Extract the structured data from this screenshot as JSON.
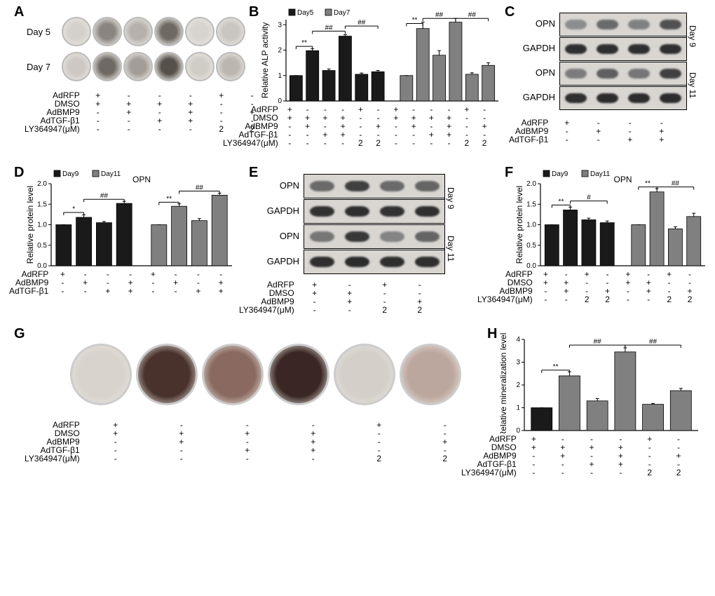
{
  "colors": {
    "bar_day_a": "#1a1a1a",
    "bar_day_b": "#808080",
    "bar_outline": "#000000",
    "errbar": "#000000",
    "plate_ring": "#c8c8c8",
    "blot_bg": "#d9d6d2",
    "blot_band_dark": "#2b2b2b",
    "blot_band_mid": "#555555",
    "blot_band_light": "#888888",
    "well_bg": "#e8e4df"
  },
  "panelA": {
    "label": "A",
    "row_labels": [
      "Day 5",
      "Day 7"
    ],
    "well_diameter": 42,
    "rows": [
      {
        "shades": [
          "#d4d0cb",
          "#8a8580",
          "#b6b1ab",
          "#6e6963",
          "#d7d3ce",
          "#c9c5c0"
        ]
      },
      {
        "shades": [
          "#cdc8c3",
          "#6e6963",
          "#a29d97",
          "#555049",
          "#d0ccc6",
          "#bbb6b0"
        ]
      }
    ],
    "treatments": {
      "labels": [
        "AdRFP",
        "DMSO",
        "AdBMP9",
        "AdTGF-β1",
        "LY364947(μM)"
      ],
      "cols": [
        [
          "+",
          "+",
          "-",
          "-",
          "-"
        ],
        [
          "-",
          "+",
          "+",
          "-",
          "-"
        ],
        [
          "-",
          "+",
          "-",
          "+",
          "-"
        ],
        [
          "-",
          "+",
          "+",
          "+",
          "-"
        ],
        [
          "+",
          "-",
          "-",
          "-",
          "2"
        ],
        [
          "-",
          "-",
          "+",
          "-",
          "2"
        ]
      ]
    }
  },
  "panelB": {
    "label": "B",
    "ylabel": "Relative ALP activity",
    "legend": [
      "Day5",
      "Day7"
    ],
    "ymax": 3.2,
    "ytick": 1,
    "groups": 6,
    "series": [
      {
        "color": "#1a1a1a",
        "values": [
          1.0,
          1.98,
          1.2,
          2.55,
          1.05,
          1.15
        ],
        "err": [
          0.0,
          0.08,
          0.06,
          0.06,
          0.05,
          0.05
        ]
      },
      {
        "color": "#808080",
        "values": [
          1.0,
          2.85,
          1.8,
          3.1,
          1.05,
          1.4
        ],
        "err": [
          0.0,
          0.25,
          0.18,
          0.15,
          0.06,
          0.1
        ]
      }
    ],
    "sig": [
      {
        "pair_series": 0,
        "g1": 0,
        "g2": 1,
        "y": 2.15,
        "text": "**"
      },
      {
        "pair_series": 0,
        "g1": 1,
        "g2": 3,
        "y": 2.75,
        "text": "##"
      },
      {
        "pair_series": 0,
        "g1": 3,
        "g2": 5,
        "y": 2.95,
        "text": "##"
      },
      {
        "pair_series": 1,
        "g1": 0,
        "g2": 1,
        "y": 3.05,
        "text": "**"
      },
      {
        "pair_series": 1,
        "g1": 1,
        "g2": 3,
        "y": 3.25,
        "text": "##"
      },
      {
        "pair_series": 1,
        "g1": 3,
        "g2": 5,
        "y": 3.25,
        "text": "##"
      }
    ],
    "treatments": {
      "labels": [
        "AdRFP",
        "DMSO",
        "AdBMP9",
        "AdTGF-β1",
        "LY364947(μM)"
      ],
      "cols": [
        [
          "+",
          "+",
          "-",
          "-",
          "-"
        ],
        [
          "-",
          "+",
          "+",
          "-",
          "-"
        ],
        [
          "-",
          "+",
          "-",
          "+",
          "-"
        ],
        [
          "-",
          "+",
          "+",
          "+",
          "-"
        ],
        [
          "+",
          "-",
          "-",
          "-",
          "2"
        ],
        [
          "-",
          "-",
          "+",
          "-",
          "2"
        ]
      ],
      "repeat_cols_for_series": true
    }
  },
  "panelC": {
    "label": "C",
    "lane_count": 4,
    "groups": [
      {
        "side": "Day 9",
        "rows": [
          {
            "name": "OPN",
            "intensity": [
              0.35,
              0.55,
              0.42,
              0.7
            ]
          },
          {
            "name": "GAPDH",
            "intensity": [
              0.9,
              0.9,
              0.9,
              0.9
            ]
          }
        ]
      },
      {
        "side": "Day 11",
        "rows": [
          {
            "name": "OPN",
            "intensity": [
              0.45,
              0.62,
              0.48,
              0.8
            ]
          },
          {
            "name": "GAPDH",
            "intensity": [
              0.9,
              0.92,
              0.92,
              0.92
            ]
          }
        ]
      }
    ],
    "treatments": {
      "labels": [
        "AdRFP",
        "AdBMP9",
        "AdTGF-β1"
      ],
      "cols": [
        [
          "+",
          "-",
          "-"
        ],
        [
          "-",
          "+",
          "-"
        ],
        [
          "-",
          "-",
          "+"
        ],
        [
          "-",
          "+",
          "+"
        ]
      ]
    }
  },
  "panelD": {
    "label": "D",
    "title": "OPN",
    "ylabel": "Relative protein level",
    "legend": [
      "Day9",
      "Day11"
    ],
    "ymax": 2.0,
    "ytick": 0.5,
    "groups": 4,
    "series": [
      {
        "color": "#1a1a1a",
        "values": [
          1.0,
          1.18,
          1.05,
          1.52
        ],
        "err": [
          0.0,
          0.06,
          0.03,
          0.05
        ]
      },
      {
        "color": "#808080",
        "values": [
          1.0,
          1.45,
          1.1,
          1.72
        ],
        "err": [
          0.0,
          0.06,
          0.05,
          0.05
        ]
      }
    ],
    "sig": [
      {
        "pair_series": 0,
        "g1": 0,
        "g2": 1,
        "y": 1.3,
        "text": "*"
      },
      {
        "pair_series": 0,
        "g1": 1,
        "g2": 3,
        "y": 1.62,
        "text": "##"
      },
      {
        "pair_series": 1,
        "g1": 0,
        "g2": 1,
        "y": 1.55,
        "text": "**"
      },
      {
        "pair_series": 1,
        "g1": 1,
        "g2": 3,
        "y": 1.82,
        "text": "##"
      }
    ],
    "treatments": {
      "labels": [
        "AdRFP",
        "AdBMP9",
        "AdTGF-β1"
      ],
      "cols": [
        [
          "+",
          "-",
          "-"
        ],
        [
          "-",
          "+",
          "-"
        ],
        [
          "-",
          "-",
          "+"
        ],
        [
          "-",
          "+",
          "+"
        ]
      ],
      "repeat_cols_for_series": true
    }
  },
  "panelE": {
    "label": "E",
    "lane_count": 4,
    "groups": [
      {
        "side": "Day 9",
        "rows": [
          {
            "name": "OPN",
            "intensity": [
              0.55,
              0.8,
              0.55,
              0.58
            ]
          },
          {
            "name": "GAPDH",
            "intensity": [
              0.88,
              0.9,
              0.88,
              0.9
            ]
          }
        ]
      },
      {
        "side": "Day 11",
        "rows": [
          {
            "name": "OPN",
            "intensity": [
              0.48,
              0.85,
              0.4,
              0.58
            ]
          },
          {
            "name": "GAPDH",
            "intensity": [
              0.9,
              0.92,
              0.9,
              0.9
            ]
          }
        ]
      }
    ],
    "treatments": {
      "labels": [
        "AdRFP",
        "DMSO",
        "AdBMP9",
        "LY364947(μM)"
      ],
      "cols": [
        [
          "+",
          "+",
          "-",
          "-"
        ],
        [
          "-",
          "+",
          "+",
          "-"
        ],
        [
          "+",
          "-",
          "-",
          "2"
        ],
        [
          "-",
          "-",
          "+",
          "2"
        ]
      ]
    }
  },
  "panelF": {
    "label": "F",
    "title": "OPN",
    "ylabel": "Relative protein level",
    "legend": [
      "Day9",
      "Day11"
    ],
    "ymax": 2.0,
    "ytick": 0.5,
    "groups": 4,
    "series": [
      {
        "color": "#1a1a1a",
        "values": [
          1.0,
          1.36,
          1.12,
          1.05
        ],
        "err": [
          0.0,
          0.07,
          0.04,
          0.04
        ]
      },
      {
        "color": "#808080",
        "values": [
          1.0,
          1.8,
          0.9,
          1.2
        ],
        "err": [
          0.0,
          0.08,
          0.05,
          0.08
        ]
      }
    ],
    "sig": [
      {
        "pair_series": 0,
        "g1": 0,
        "g2": 1,
        "y": 1.48,
        "text": "**"
      },
      {
        "pair_series": 0,
        "g1": 1,
        "g2": 3,
        "y": 1.58,
        "text": "#"
      },
      {
        "pair_series": 1,
        "g1": 0,
        "g2": 1,
        "y": 1.92,
        "text": "**"
      },
      {
        "pair_series": 1,
        "g1": 1,
        "g2": 3,
        "y": 1.92,
        "text": "##"
      }
    ],
    "treatments": {
      "labels": [
        "AdRFP",
        "DMSO",
        "AdBMP9",
        "LY364947(μM)"
      ],
      "cols": [
        [
          "+",
          "+",
          "-",
          "-"
        ],
        [
          "-",
          "+",
          "+",
          "-"
        ],
        [
          "+",
          "-",
          "-",
          "2"
        ],
        [
          "-",
          "-",
          "+",
          "2"
        ]
      ],
      "repeat_cols_for_series": true
    }
  },
  "panelG": {
    "label": "G",
    "well_diameter": 88,
    "shades": [
      "#d8d3cd",
      "#4a322c",
      "#8a6a60",
      "#3a2723",
      "#d4cfc9",
      "#bca79e"
    ],
    "treatments": {
      "labels": [
        "AdRFP",
        "DMSO",
        "AdBMP9",
        "AdTGF-β1",
        "LY364947(μM)"
      ],
      "cols": [
        [
          "+",
          "+",
          "-",
          "-",
          "-"
        ],
        [
          "-",
          "+",
          "+",
          "-",
          "-"
        ],
        [
          "-",
          "+",
          "-",
          "+",
          "-"
        ],
        [
          "-",
          "+",
          "+",
          "+",
          "-"
        ],
        [
          "+",
          "-",
          "-",
          "-",
          "2"
        ],
        [
          "-",
          "-",
          "+",
          "-",
          "2"
        ]
      ]
    }
  },
  "panelH": {
    "label": "H",
    "ylabel": "Relative mineralization level",
    "ymax": 4.0,
    "ytick": 1,
    "groups": 6,
    "series": [
      {
        "values": [
          1.0,
          2.4,
          1.3,
          3.45,
          1.15,
          1.75
        ],
        "err": [
          0.0,
          0.18,
          0.1,
          0.18,
          0.04,
          0.1
        ],
        "colors": [
          "#1a1a1a",
          "#808080",
          "#808080",
          "#808080",
          "#808080",
          "#808080"
        ]
      }
    ],
    "sig": [
      {
        "g1": 0,
        "g2": 1,
        "y": 2.65,
        "text": "**"
      },
      {
        "g1": 1,
        "g2": 3,
        "y": 3.75,
        "text": "##"
      },
      {
        "g1": 3,
        "g2": 5,
        "y": 3.75,
        "text": "##"
      }
    ],
    "treatments": {
      "labels": [
        "AdRFP",
        "DMSO",
        "AdBMP9",
        "AdTGF-β1",
        "LY364947(μM)"
      ],
      "cols": [
        [
          "+",
          "+",
          "-",
          "-",
          "-"
        ],
        [
          "-",
          "+",
          "+",
          "-",
          "-"
        ],
        [
          "-",
          "+",
          "-",
          "+",
          "-"
        ],
        [
          "-",
          "+",
          "+",
          "+",
          "-"
        ],
        [
          "+",
          "-",
          "-",
          "-",
          "2"
        ],
        [
          "-",
          "-",
          "+",
          "-",
          "2"
        ]
      ]
    }
  }
}
